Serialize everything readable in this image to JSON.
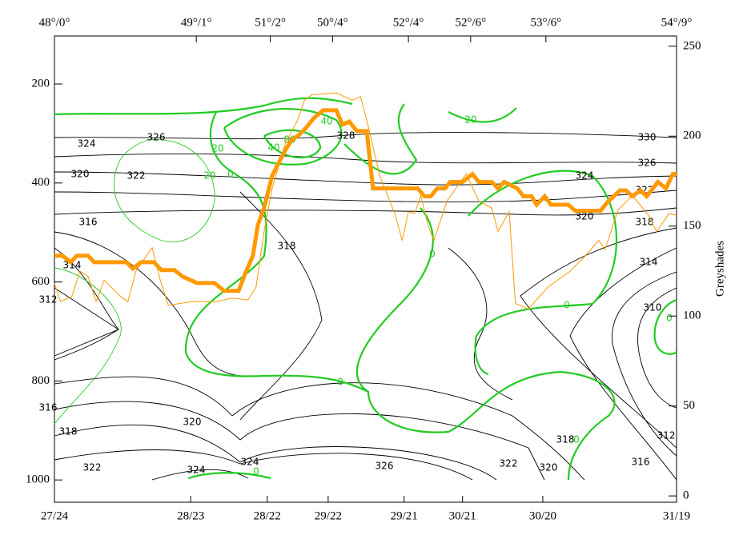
{
  "chart_data": {
    "type": "line",
    "y2label": "Greyshades",
    "xlim": [
      0,
      100
    ],
    "xticks": [
      {
        "value": 0,
        "label": "27/24"
      },
      {
        "value": 21.9,
        "label": "28/23"
      },
      {
        "value": 34.2,
        "label": "28/22"
      },
      {
        "value": 44.0,
        "label": "29/22"
      },
      {
        "value": 56.2,
        "label": "29/21"
      },
      {
        "value": 65.6,
        "label": "30/21"
      },
      {
        "value": 78.5,
        "label": "30/20"
      },
      {
        "value": 100,
        "label": "31/19"
      }
    ],
    "x2ticks": [
      {
        "value": 0,
        "label": "48°/0°"
      },
      {
        "value": 22.8,
        "label": "49°/1°"
      },
      {
        "value": 34.7,
        "label": "51°/2°"
      },
      {
        "value": 44.7,
        "label": "50°/4°"
      },
      {
        "value": 56.9,
        "label": "52°/4°"
      },
      {
        "value": 66.9,
        "label": "52°/6°"
      },
      {
        "value": 79.0,
        "label": "53°/6°"
      },
      {
        "value": 100,
        "label": "54°/9°"
      }
    ],
    "ylim": [
      1045,
      103
    ],
    "yticks": [
      200,
      400,
      600,
      800,
      1000
    ],
    "y2lim": [
      -3.5,
      255.7
    ],
    "y2ticks": [
      0,
      50,
      100,
      150,
      200,
      250
    ],
    "series": [
      {
        "color": "#ff9900",
        "line_width": 5,
        "axis": "y",
        "x": [
          0,
          1.3,
          2.6,
          3.6,
          5.4,
          6.4,
          8.8,
          11.6,
          12.6,
          13.9,
          16.0,
          17.2,
          19.3,
          20.6,
          22.9,
          25.7,
          27.3,
          29.6,
          30.6,
          31.9,
          32.7,
          33.7,
          35.0,
          37.1,
          38.1,
          39.4,
          40.4,
          41.7,
          43.2,
          45.3,
          46.3,
          47.4,
          48.6,
          50.2,
          51.2,
          58.4,
          59.5,
          60.5,
          61.5,
          62.8,
          63.6,
          65.6,
          67.2,
          68.2,
          70.3,
          71.3,
          72.3,
          74.4,
          75.4,
          76.7,
          77.5,
          78.8,
          79.8,
          82.6,
          83.7,
          87.8,
          88.8,
          90.9,
          91.9,
          92.9,
          94.2,
          95.2,
          97.0,
          98.3,
          99.4,
          100
        ],
        "values": [
          547,
          547,
          560,
          547,
          547,
          560,
          560,
          560,
          573,
          560,
          560,
          576,
          576,
          589,
          602,
          602,
          618,
          618,
          585,
          547,
          485,
          450,
          385,
          334,
          314,
          302,
          289,
          269,
          253,
          253,
          282,
          276,
          295,
          295,
          411,
          411,
          427,
          427,
          411,
          411,
          398,
          398,
          382,
          398,
          398,
          411,
          398,
          411,
          427,
          427,
          444,
          427,
          444,
          444,
          456,
          456,
          440,
          415,
          415,
          427,
          415,
          427,
          398,
          411,
          382,
          382
        ]
      },
      {
        "color": "#ff9900",
        "line_width": 1,
        "axis": "y2",
        "x": [
          0,
          1.0,
          2.8,
          4.1,
          5.4,
          6.7,
          8.0,
          10.6,
          11.8,
          13.1,
          15.7,
          17.0,
          18.3,
          22.1,
          26.0,
          28.6,
          31.1,
          32.4,
          33.7,
          35.0,
          37.1,
          39.1,
          40.2,
          41.4,
          45.3,
          47.9,
          49.2,
          50.2,
          52.3,
          54.8,
          55.9,
          56.9,
          57.9,
          58.9,
          60.0,
          61.0,
          63.1,
          66.2,
          68.2,
          70.3,
          71.3,
          73.1,
          74.1,
          76.2,
          79.3,
          82.9,
          85.2,
          87.5,
          88.5,
          90.6,
          92.9,
          95.5,
          96.8,
          98.8,
          100
        ],
        "values": [
          118,
          108,
          111,
          125,
          122,
          108,
          120,
          111,
          108,
          125,
          138,
          120,
          106,
          108,
          108,
          110,
          109,
          116,
          147,
          171,
          196,
          209,
          220,
          223,
          224,
          220,
          222,
          209,
          178,
          156,
          142,
          158,
          157,
          167,
          151,
          142,
          164,
          179,
          164,
          160,
          147,
          158,
          107,
          104,
          116,
          125,
          133,
          142,
          137,
          159,
          167,
          156,
          147,
          157,
          156
        ]
      }
    ],
    "annotations": [
      "324",
      "326",
      "322",
      "320",
      "316",
      "314",
      "312",
      "318",
      "328",
      "330",
      "326",
      "324",
      "322",
      "320",
      "318",
      "314",
      "310",
      "316",
      "318",
      "320",
      "322",
      "324",
      "324",
      "326",
      "322",
      "320",
      "318",
      "312",
      "316",
      "20",
      "20",
      "0",
      "40",
      "80",
      "40",
      "20",
      "0",
      "0",
      "0",
      "0",
      "0",
      "0"
    ]
  }
}
